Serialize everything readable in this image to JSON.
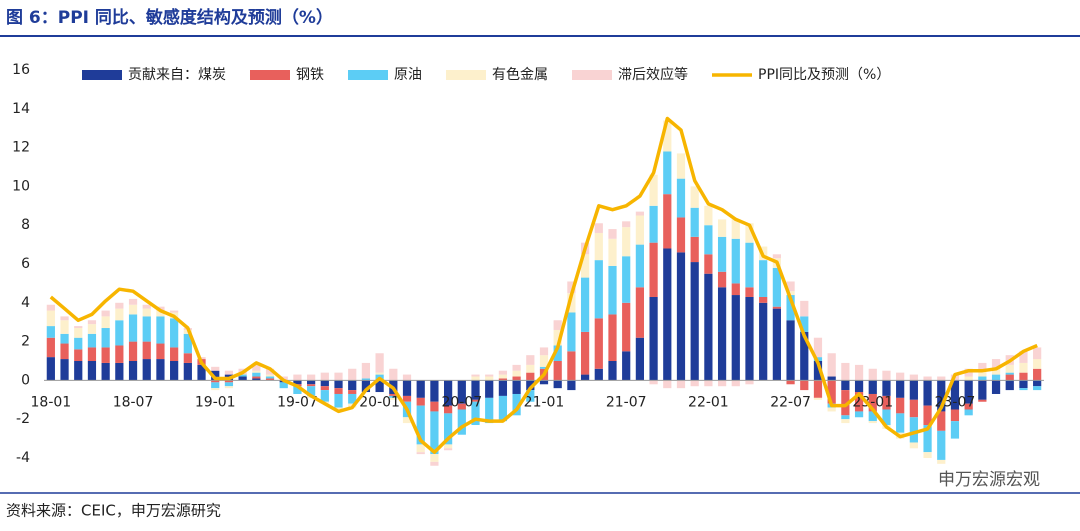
{
  "chart_data": {
    "type": "bar_line",
    "title": "图 6：PPI 同比、敏感度结构及预测（%）",
    "source": "资料来源：CEIC，申万宏源研究",
    "watermark": "申万宏源宏观",
    "categories": [
      "18-01",
      null,
      null,
      null,
      null,
      null,
      "18-07",
      null,
      null,
      null,
      null,
      null,
      "19-01",
      null,
      null,
      null,
      null,
      null,
      "19-07",
      null,
      null,
      null,
      null,
      null,
      "20-01",
      null,
      null,
      null,
      null,
      null,
      "20-07",
      null,
      null,
      null,
      null,
      null,
      "21-01",
      null,
      null,
      null,
      null,
      null,
      "21-07",
      null,
      null,
      null,
      null,
      null,
      "22-01",
      null,
      null,
      null,
      null,
      null,
      "22-07",
      null,
      null,
      null,
      null,
      null,
      "23-01",
      null,
      null,
      null,
      null,
      null,
      "23-07",
      null,
      null,
      null,
      null,
      null,
      null
    ],
    "ylim": [
      -4,
      16
    ],
    "yticks": [
      -4,
      -2,
      0,
      2,
      4,
      6,
      8,
      10,
      12,
      14,
      16
    ],
    "series": [
      {
        "name": "贡献来自：煤炭",
        "color": "#1f3c99",
        "values": [
          1.2,
          1.1,
          1.0,
          1.0,
          0.9,
          0.9,
          1.0,
          1.1,
          1.1,
          1.0,
          0.9,
          0.8,
          0.5,
          0.3,
          0.2,
          0.1,
          0.0,
          -0.1,
          -0.2,
          -0.2,
          -0.3,
          -0.4,
          -0.5,
          -0.6,
          -0.6,
          -0.7,
          -0.8,
          -0.9,
          -1.1,
          -1.3,
          -1.2,
          -1.0,
          -0.9,
          -0.8,
          -0.7,
          -0.5,
          -0.2,
          -0.4,
          -0.5,
          0.3,
          0.6,
          1.0,
          1.5,
          2.2,
          4.3,
          6.8,
          6.6,
          6.1,
          5.5,
          4.8,
          4.4,
          4.3,
          4.0,
          3.7,
          3.1,
          2.5,
          1.0,
          0.2,
          -0.5,
          -0.6,
          -0.7,
          -0.8,
          -0.9,
          -1.0,
          -1.3,
          -1.6,
          -1.5,
          -1.2,
          -1.0,
          -0.7,
          -0.5,
          -0.4,
          -0.3
        ]
      },
      {
        "name": "钢铁",
        "color": "#e8605c",
        "values": [
          1.0,
          0.8,
          0.6,
          0.7,
          0.8,
          0.9,
          1.0,
          0.9,
          0.8,
          0.7,
          0.5,
          0.3,
          -0.1,
          -0.1,
          0.0,
          0.1,
          0.1,
          0.0,
          -0.1,
          -0.1,
          -0.2,
          -0.3,
          -0.2,
          0.0,
          0.0,
          -0.1,
          -0.3,
          -0.4,
          -0.5,
          -0.4,
          -0.3,
          -0.1,
          0.0,
          0.1,
          0.2,
          0.4,
          0.6,
          1.0,
          1.5,
          2.2,
          2.6,
          2.4,
          2.5,
          2.6,
          2.8,
          2.8,
          1.8,
          1.3,
          1.0,
          0.8,
          0.6,
          0.5,
          0.3,
          0.1,
          -0.2,
          -0.5,
          -0.9,
          -1.2,
          -1.3,
          -1.0,
          -0.9,
          -0.7,
          -0.8,
          -0.9,
          -1.0,
          -1.0,
          -0.6,
          -0.3,
          -0.1,
          0.0,
          0.3,
          0.4,
          0.6
        ]
      },
      {
        "name": "原油",
        "color": "#5ccdf5",
        "values": [
          0.6,
          0.5,
          0.6,
          0.7,
          1.0,
          1.3,
          1.4,
          1.3,
          1.4,
          1.5,
          1.0,
          0.0,
          -0.3,
          -0.2,
          0.1,
          0.2,
          0.1,
          -0.3,
          -0.4,
          -0.5,
          -0.6,
          -0.7,
          -0.5,
          0.1,
          0.3,
          -0.1,
          -0.8,
          -2.0,
          -2.2,
          -1.6,
          -1.3,
          -1.2,
          -1.3,
          -1.3,
          -1.1,
          -0.6,
          0.1,
          0.8,
          2.0,
          2.8,
          3.0,
          2.5,
          2.4,
          2.2,
          1.9,
          2.2,
          2.0,
          1.5,
          1.5,
          1.8,
          2.3,
          2.3,
          1.9,
          2.0,
          1.3,
          0.8,
          0.2,
          -0.2,
          -0.2,
          -0.3,
          -0.5,
          -0.8,
          -1.0,
          -1.3,
          -1.4,
          -1.5,
          -0.9,
          -0.3,
          0.2,
          0.3,
          0.1,
          -0.1,
          -0.2
        ]
      },
      {
        "name": "有色金属",
        "color": "#fdf0cc",
        "values": [
          0.8,
          0.7,
          0.5,
          0.5,
          0.6,
          0.6,
          0.5,
          0.4,
          0.3,
          0.3,
          0.2,
          0.0,
          -0.1,
          -0.1,
          0.0,
          0.1,
          0.1,
          0.0,
          0.0,
          -0.1,
          -0.1,
          -0.2,
          -0.2,
          0.0,
          0.1,
          -0.1,
          -0.3,
          -0.4,
          -0.4,
          -0.2,
          0.0,
          0.2,
          0.2,
          0.2,
          0.3,
          0.4,
          0.6,
          0.8,
          1.0,
          1.2,
          1.4,
          1.4,
          1.5,
          1.5,
          1.6,
          1.6,
          1.3,
          1.1,
          1.0,
          0.9,
          1.0,
          1.0,
          0.7,
          0.5,
          0.2,
          0.0,
          -0.1,
          -0.2,
          -0.2,
          0.0,
          -0.1,
          -0.2,
          -0.3,
          -0.3,
          -0.3,
          -0.2,
          0.0,
          0.2,
          0.3,
          0.3,
          0.4,
          0.5,
          0.5
        ]
      },
      {
        "name": "滞后效应等",
        "color": "#f9d3d3",
        "values": [
          0.3,
          0.2,
          0.1,
          0.2,
          0.3,
          0.3,
          0.3,
          0.2,
          0.2,
          0.1,
          0.1,
          0.1,
          0.2,
          0.2,
          0.3,
          0.3,
          0.3,
          0.2,
          0.3,
          0.3,
          0.4,
          0.4,
          0.6,
          0.8,
          1.0,
          0.6,
          0.3,
          -0.1,
          -0.2,
          -0.1,
          0.0,
          0.1,
          0.1,
          0.2,
          0.3,
          0.5,
          0.4,
          0.5,
          0.6,
          0.6,
          0.5,
          0.5,
          0.3,
          0.2,
          -0.2,
          -0.4,
          -0.4,
          -0.3,
          -0.3,
          -0.3,
          -0.3,
          -0.2,
          0.0,
          0.2,
          0.5,
          0.8,
          1.0,
          1.2,
          0.9,
          0.8,
          0.6,
          0.5,
          0.4,
          0.3,
          0.2,
          0.2,
          0.3,
          0.4,
          0.4,
          0.5,
          0.5,
          0.6,
          0.6
        ]
      }
    ],
    "line": {
      "name": "PPI同比及预测（%）",
      "color": "#f7b500",
      "values": [
        4.3,
        3.7,
        3.1,
        3.4,
        4.1,
        4.7,
        4.6,
        4.1,
        3.6,
        3.3,
        2.7,
        0.9,
        0.1,
        0.1,
        0.4,
        0.9,
        0.6,
        0.0,
        -0.3,
        -0.8,
        -1.2,
        -1.6,
        -1.4,
        -0.5,
        0.1,
        -0.4,
        -1.5,
        -3.1,
        -3.7,
        -3.0,
        -2.4,
        -2.0,
        -2.1,
        -2.1,
        -1.5,
        -0.4,
        0.3,
        1.7,
        4.4,
        6.8,
        9.0,
        8.8,
        9.0,
        9.5,
        10.7,
        13.5,
        12.9,
        10.3,
        9.1,
        8.8,
        8.3,
        8.0,
        6.4,
        6.1,
        4.2,
        2.3,
        0.9,
        -1.3,
        -1.3,
        -0.7,
        -1.5,
        -2.4,
        -2.9,
        -2.7,
        -2.5,
        -1.4,
        0.3,
        0.5,
        0.5,
        0.6,
        1.0,
        1.5,
        1.8
      ]
    }
  }
}
